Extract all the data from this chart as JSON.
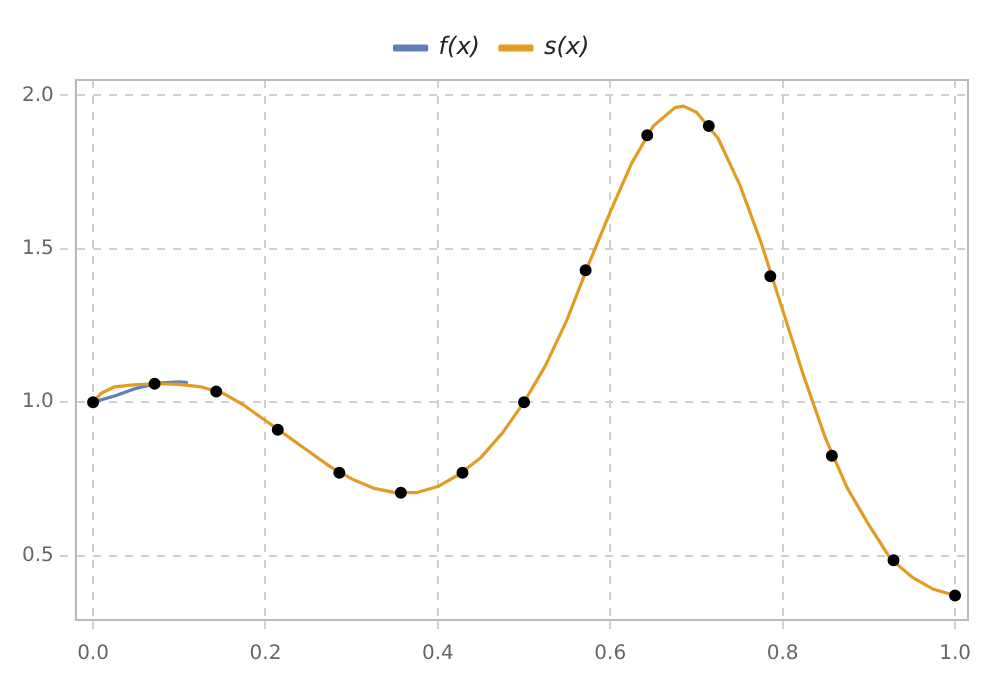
{
  "chart_data": {
    "type": "line",
    "legend": "top",
    "grid": true,
    "marker": "none",
    "line_style": "solid",
    "xlim": [
      -0.02,
      1.015
    ],
    "ylim": [
      0.29,
      2.05
    ],
    "xticks": [
      {
        "value": 0,
        "label": "0.0"
      },
      {
        "value": 0.2,
        "label": "0.2"
      },
      {
        "value": 0.4,
        "label": "0.4"
      },
      {
        "value": 0.6,
        "label": "0.6"
      },
      {
        "value": 0.8,
        "label": "0.8"
      },
      {
        "value": 1,
        "label": "1.0"
      }
    ],
    "yticks": [
      {
        "value": 0.5,
        "label": "0.5"
      },
      {
        "value": 1,
        "label": "1.0"
      },
      {
        "value": 1.5,
        "label": "1.5"
      },
      {
        "value": 2,
        "label": "2.0"
      }
    ],
    "series": [
      {
        "name": "f(x)",
        "color": "#5e81b5",
        "x": [
          0,
          0.025,
          0.05,
          0.075,
          0.1,
          0.11
        ],
        "values": [
          1.0,
          1.02,
          1.045,
          1.062,
          1.066,
          1.064
        ]
      },
      {
        "name": "s(x)",
        "color": "#e19c24",
        "x": [
          0,
          0.01,
          0.025,
          0.05,
          0.075,
          0.1,
          0.125,
          0.15,
          0.175,
          0.2,
          0.225,
          0.25,
          0.275,
          0.3,
          0.325,
          0.35,
          0.375,
          0.4,
          0.425,
          0.45,
          0.475,
          0.5,
          0.525,
          0.55,
          0.575,
          0.6,
          0.625,
          0.65,
          0.675,
          0.685,
          0.7,
          0.725,
          0.75,
          0.775,
          0.8,
          0.825,
          0.85,
          0.875,
          0.9,
          0.925,
          0.95,
          0.975,
          1
        ],
        "values": [
          1.0,
          1.03,
          1.05,
          1.057,
          1.06,
          1.058,
          1.05,
          1.03,
          0.99,
          0.94,
          0.89,
          0.84,
          0.79,
          0.75,
          0.72,
          0.705,
          0.705,
          0.725,
          0.765,
          0.82,
          0.9,
          1.0,
          1.12,
          1.27,
          1.45,
          1.62,
          1.78,
          1.9,
          1.96,
          1.965,
          1.945,
          1.86,
          1.71,
          1.52,
          1.3,
          1.08,
          0.88,
          0.72,
          0.6,
          0.49,
          0.43,
          0.39,
          0.37
        ]
      },
      {
        "type": "scatter",
        "color": "#000000",
        "marker": "circle",
        "x": [
          0,
          0.0714,
          0.1429,
          0.2143,
          0.2857,
          0.3571,
          0.4286,
          0.5,
          0.5714,
          0.6429,
          0.7143,
          0.7857,
          0.8571,
          0.9286,
          1
        ],
        "values": [
          1.0,
          1.06,
          1.035,
          0.91,
          0.77,
          0.705,
          0.77,
          1.0,
          1.43,
          1.87,
          1.9,
          1.41,
          0.825,
          0.485,
          0.37
        ]
      }
    ]
  }
}
